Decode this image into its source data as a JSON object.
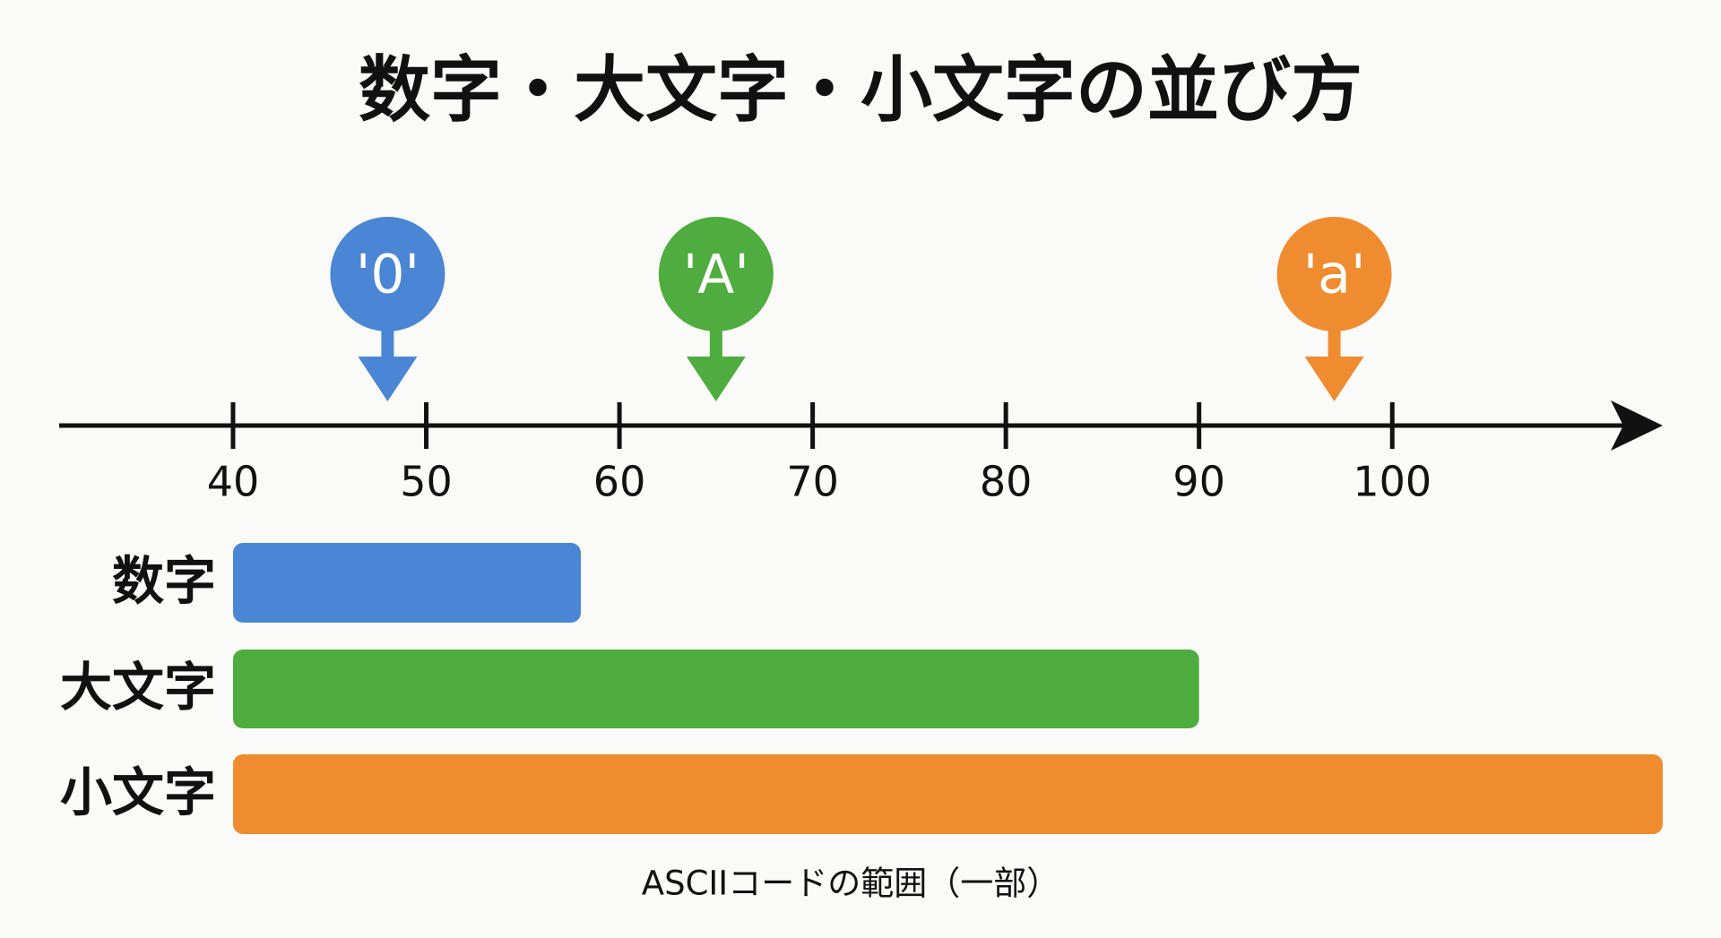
{
  "chart_data": {
    "type": "range-bar",
    "title": "数字・大文字・小文字の並び方",
    "x_label": "ASCIIコードの範囲（一部）",
    "xlim": [
      31,
      114
    ],
    "xticks": [
      40,
      50,
      60,
      70,
      80,
      90,
      100
    ],
    "markers": [
      {
        "label": "'0'",
        "value": 48,
        "color": "#4a86d4"
      },
      {
        "label": "'A'",
        "value": 65,
        "color": "#4fac3e"
      },
      {
        "label": "'a'",
        "value": 97,
        "color": "#f08c30"
      }
    ],
    "categories": [
      "数字",
      "大文字",
      "小文字"
    ],
    "ranges": [
      [
        40,
        58
      ],
      [
        40,
        90
      ],
      [
        40,
        114
      ]
    ],
    "colors": [
      "#4a86d4",
      "#4fac3e",
      "#f08c30"
    ]
  }
}
